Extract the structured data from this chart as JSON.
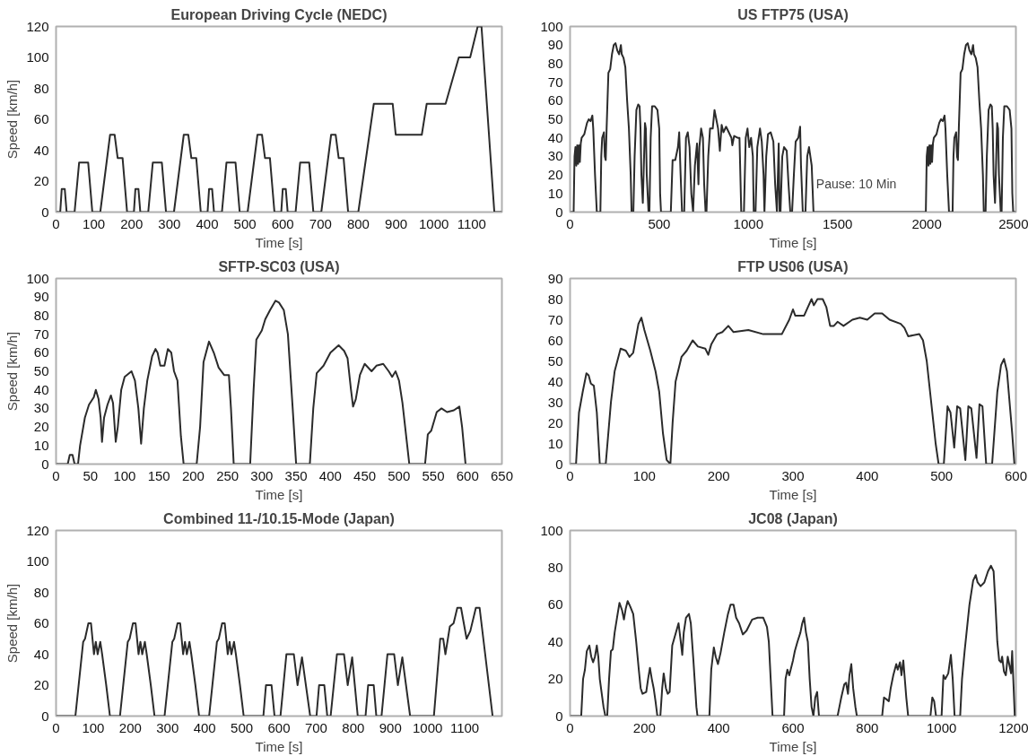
{
  "chart_data": [
    {
      "type": "line",
      "title": "European Driving Cycle (NEDC)",
      "xlabel": "Time [s]",
      "ylabel": "Speed [km/h]",
      "xlim": [
        0,
        1180
      ],
      "ylim": [
        0,
        120
      ],
      "xticks": [
        0,
        100,
        200,
        300,
        400,
        500,
        600,
        700,
        800,
        900,
        1000,
        1100
      ],
      "yticks": [
        0,
        20,
        40,
        60,
        80,
        100,
        120
      ],
      "grid": false,
      "series": [
        {
          "color": "#2b2b2b",
          "x": [
            0,
            11,
            15,
            23,
            28,
            49,
            61,
            85,
            96,
            117,
            143,
            155,
            163,
            176,
            188,
            206,
            210,
            218,
            223,
            244,
            256,
            280,
            291,
            312,
            338,
            350,
            358,
            371,
            383,
            401,
            405,
            413,
            418,
            439,
            451,
            475,
            486,
            507,
            533,
            545,
            553,
            566,
            578,
            596,
            600,
            608,
            613,
            634,
            646,
            670,
            681,
            702,
            728,
            740,
            748,
            761,
            773,
            800,
            841,
            891,
            899,
            968,
            981,
            1031,
            1066,
            1096,
            1116,
            1126,
            1160,
            1180
          ],
          "values": [
            0,
            0,
            15,
            15,
            0,
            0,
            32,
            32,
            0,
            0,
            50,
            50,
            35,
            35,
            0,
            0,
            15,
            15,
            0,
            0,
            32,
            32,
            0,
            0,
            50,
            50,
            35,
            35,
            0,
            0,
            15,
            15,
            0,
            0,
            32,
            32,
            0,
            0,
            50,
            50,
            35,
            35,
            0,
            0,
            15,
            15,
            0,
            0,
            32,
            32,
            0,
            0,
            50,
            50,
            35,
            35,
            0,
            0,
            70,
            70,
            50,
            50,
            70,
            70,
            100,
            100,
            120,
            120,
            0,
            0
          ]
        }
      ]
    },
    {
      "type": "line",
      "title": "US FTP75 (USA)",
      "xlabel": "Time [s]",
      "xlim": [
        0,
        2500
      ],
      "ylim": [
        0,
        100
      ],
      "xticks": [
        0,
        500,
        1000,
        1500,
        2000,
        2500
      ],
      "yticks": [
        0,
        10,
        20,
        30,
        40,
        50,
        60,
        70,
        80,
        90,
        100
      ],
      "grid": false,
      "annotations": [
        {
          "text": "Pause: 10 Min",
          "x": 1380,
          "y": 15
        }
      ],
      "series": [
        {
          "color": "#2b2b2b",
          "x": [
            0,
            20,
            25,
            30,
            35,
            40,
            45,
            50,
            55,
            60,
            65,
            80,
            95,
            105,
            115,
            125,
            130,
            140,
            150,
            170,
            175,
            180,
            190,
            195,
            200,
            205,
            215,
            225,
            235,
            245,
            255,
            265,
            275,
            285,
            290,
            300,
            310,
            320,
            330,
            340,
            345,
            355,
            362,
            372,
            382,
            390,
            395,
            400,
            408,
            415,
            420,
            425,
            430,
            440,
            445,
            452,
            460,
            475,
            490,
            500,
            505,
            510,
            565,
            575,
            590,
            605,
            612,
            620,
            628,
            640,
            650,
            660,
            670,
            680,
            690,
            700,
            712,
            720,
            725,
            735,
            745,
            752,
            760,
            765,
            775,
            785,
            800,
            810,
            820,
            830,
            840,
            850,
            860,
            875,
            890,
            905,
            910,
            920,
            940,
            950,
            960,
            975,
            985,
            995,
            1005,
            1015,
            1025,
            1030,
            1040,
            1050,
            1065,
            1075,
            1085,
            1090,
            1100,
            1110,
            1125,
            1140,
            1150,
            1160,
            1170,
            1175,
            1180,
            1190,
            1200,
            1215,
            1225,
            1235,
            1245,
            1255,
            1265,
            1280,
            1290,
            1295,
            1305,
            1320,
            1330,
            1340,
            1355,
            1365,
            1975,
            1995,
            2000,
            2005,
            2010,
            2015,
            2020,
            2025,
            2030,
            2035,
            2040,
            2055,
            2070,
            2080,
            2090,
            2100,
            2105,
            2115,
            2125,
            2145,
            2150,
            2155,
            2165,
            2170,
            2175,
            2180,
            2190,
            2200,
            2210,
            2220,
            2230,
            2240,
            2250,
            2260,
            2265,
            2275,
            2285,
            2295,
            2305,
            2315,
            2320,
            2330,
            2337,
            2347,
            2357,
            2365,
            2370,
            2375,
            2383,
            2390,
            2395,
            2400,
            2405,
            2415,
            2420,
            2427,
            2435,
            2450,
            2465,
            2475,
            2480,
            2485,
            2500
          ],
          "values": [
            0,
            0,
            30,
            35,
            25,
            36,
            26,
            36,
            27,
            37,
            40,
            42,
            48,
            50,
            49,
            52,
            45,
            20,
            0,
            0,
            30,
            40,
            43,
            30,
            28,
            45,
            75,
            77,
            85,
            90,
            91,
            87,
            85,
            90,
            85,
            83,
            78,
            60,
            45,
            20,
            0,
            0,
            30,
            55,
            58,
            57,
            45,
            20,
            5,
            30,
            48,
            45,
            20,
            0,
            0,
            40,
            57,
            57,
            55,
            45,
            10,
            0,
            0,
            28,
            28,
            35,
            43,
            20,
            0,
            0,
            40,
            43,
            35,
            10,
            0,
            25,
            37,
            15,
            35,
            45,
            40,
            15,
            0,
            0,
            30,
            45,
            45,
            55,
            50,
            45,
            33,
            47,
            43,
            46,
            43,
            40,
            36,
            41,
            40,
            40,
            0,
            0,
            40,
            45,
            35,
            40,
            30,
            0,
            0,
            35,
            45,
            38,
            20,
            0,
            30,
            42,
            43,
            38,
            15,
            0,
            37,
            0,
            0,
            30,
            35,
            33,
            15,
            0,
            0,
            20,
            38,
            40,
            46,
            25,
            0,
            0,
            30,
            35,
            25,
            0,
            0,
            0,
            30,
            35,
            25,
            36,
            26,
            36,
            27,
            37,
            40,
            42,
            48,
            50,
            49,
            52,
            45,
            20,
            0,
            0,
            30,
            40,
            43,
            30,
            28,
            45,
            75,
            77,
            85,
            90,
            91,
            87,
            85,
            90,
            85,
            83,
            78,
            60,
            45,
            20,
            0,
            0,
            30,
            55,
            58,
            57,
            45,
            20,
            5,
            30,
            48,
            45,
            20,
            0,
            0,
            40,
            57,
            57,
            55,
            45,
            10,
            0,
            0
          ]
        }
      ]
    },
    {
      "type": "line",
      "title": "SFTP-SC03 (USA)",
      "xlabel": "Time [s]",
      "ylabel": "Speed [km/h]",
      "xlim": [
        0,
        650
      ],
      "ylim": [
        0,
        100
      ],
      "xticks": [
        0,
        50,
        100,
        150,
        200,
        250,
        300,
        350,
        400,
        450,
        500,
        550,
        600,
        650
      ],
      "yticks": [
        0,
        10,
        20,
        30,
        40,
        50,
        60,
        70,
        80,
        90,
        100
      ],
      "grid": false,
      "series": [
        {
          "color": "#2b2b2b",
          "x": [
            0,
            17,
            20,
            24,
            27,
            32,
            35,
            42,
            48,
            55,
            58,
            62,
            65,
            67,
            70,
            75,
            80,
            83,
            87,
            90,
            95,
            100,
            110,
            115,
            120,
            124,
            128,
            133,
            140,
            145,
            148,
            152,
            158,
            163,
            168,
            172,
            177,
            182,
            186,
            205,
            210,
            215,
            223,
            230,
            237,
            245,
            252,
            255,
            259,
            283,
            288,
            292,
            300,
            305,
            312,
            320,
            325,
            332,
            338,
            345,
            350,
            370,
            375,
            380,
            390,
            400,
            412,
            420,
            425,
            430,
            433,
            437,
            443,
            450,
            460,
            467,
            477,
            485,
            490,
            495,
            500,
            505,
            512,
            515,
            538,
            542,
            547,
            555,
            562,
            570,
            580,
            588,
            592,
            597
          ],
          "values": [
            0,
            0,
            5,
            5,
            0,
            0,
            10,
            25,
            32,
            36,
            40,
            35,
            25,
            12,
            25,
            32,
            37,
            33,
            12,
            20,
            40,
            47,
            50,
            45,
            30,
            11,
            30,
            45,
            58,
            62,
            60,
            53,
            53,
            62,
            60,
            50,
            45,
            15,
            0,
            0,
            20,
            55,
            66,
            60,
            52,
            48,
            48,
            30,
            0,
            0,
            40,
            67,
            72,
            78,
            83,
            88,
            87,
            83,
            70,
            30,
            0,
            0,
            30,
            49,
            53,
            60,
            64,
            61,
            57,
            40,
            31,
            35,
            48,
            54,
            50,
            53,
            54,
            50,
            47,
            50,
            45,
            33,
            10,
            0,
            0,
            16,
            18,
            28,
            30,
            28,
            29,
            31,
            20,
            0
          ]
        }
      ]
    },
    {
      "type": "line",
      "title": "FTP US06 (USA)",
      "xlabel": "Time [s]",
      "xlim": [
        0,
        600
      ],
      "ylim": [
        0,
        90
      ],
      "xticks": [
        0,
        100,
        200,
        300,
        400,
        500,
        600
      ],
      "yticks": [
        0,
        10,
        20,
        30,
        40,
        50,
        60,
        70,
        80,
        90
      ],
      "grid": false,
      "series": [
        {
          "color": "#2b2b2b",
          "x": [
            0,
            8,
            12,
            17,
            22,
            25,
            28,
            32,
            36,
            40,
            48,
            55,
            60,
            68,
            75,
            80,
            85,
            92,
            96,
            100,
            108,
            115,
            120,
            125,
            130,
            135,
            138,
            142,
            150,
            157,
            165,
            172,
            182,
            186,
            190,
            198,
            205,
            213,
            220,
            240,
            260,
            285,
            295,
            300,
            303,
            315,
            320,
            325,
            328,
            333,
            340,
            345,
            350,
            355,
            360,
            368,
            380,
            390,
            400,
            410,
            420,
            430,
            445,
            450,
            455,
            470,
            475,
            480,
            486,
            492,
            496,
            503,
            508,
            512,
            517,
            521,
            525,
            532,
            536,
            540,
            547,
            551,
            555,
            560,
            568,
            575,
            580,
            584,
            588,
            595,
            598
          ],
          "values": [
            0,
            0,
            25,
            35,
            44,
            43,
            39,
            38,
            25,
            0,
            0,
            30,
            45,
            56,
            55,
            52,
            54,
            68,
            71,
            65,
            55,
            45,
            35,
            15,
            2,
            0,
            20,
            40,
            52,
            55,
            60,
            57,
            56,
            53,
            58,
            63,
            64,
            67,
            64,
            65,
            63,
            63,
            70,
            75,
            72,
            72,
            76,
            80,
            77,
            80,
            80,
            76,
            67,
            67,
            69,
            67,
            70,
            71,
            70,
            73,
            73,
            70,
            68,
            66,
            62,
            63,
            60,
            50,
            30,
            10,
            0,
            0,
            28,
            25,
            8,
            28,
            27,
            2,
            28,
            27,
            3,
            29,
            28,
            0,
            0,
            35,
            48,
            51,
            45,
            15,
            0
          ]
        }
      ]
    },
    {
      "type": "line",
      "title": "Combined 11-/10.15-Mode (Japan)",
      "xlabel": "Time [s]",
      "ylabel": "Speed [km/h]",
      "xlim": [
        0,
        1200
      ],
      "ylim": [
        0,
        120
      ],
      "xticks": [
        0,
        100,
        200,
        300,
        400,
        500,
        600,
        700,
        800,
        900,
        1000,
        1100
      ],
      "yticks": [
        0,
        20,
        40,
        60,
        80,
        100,
        120
      ],
      "grid": false,
      "series": [
        {
          "color": "#2b2b2b",
          "x": [
            0,
            52,
            73,
            78,
            87,
            94,
            102,
            107,
            112,
            119,
            124,
            135,
            145,
            172,
            193,
            198,
            207,
            214,
            222,
            227,
            232,
            239,
            244,
            255,
            265,
            292,
            313,
            318,
            327,
            334,
            342,
            347,
            352,
            359,
            364,
            375,
            385,
            412,
            433,
            438,
            447,
            454,
            462,
            467,
            472,
            479,
            484,
            495,
            505,
            558,
            565,
            580,
            588,
            604,
            620,
            640,
            650,
            662,
            684,
            701,
            708,
            722,
            730,
            739,
            756,
            775,
            785,
            797,
            812,
            833,
            840,
            855,
            862,
            876,
            892,
            910,
            920,
            932,
            953,
            1017,
            1034,
            1042,
            1048,
            1060,
            1070,
            1080,
            1090,
            1105,
            1115,
            1130,
            1140,
            1160,
            1175
          ],
          "values": [
            0,
            0,
            48,
            50,
            60,
            60,
            40,
            48,
            40,
            48,
            40,
            20,
            0,
            0,
            48,
            50,
            60,
            60,
            40,
            48,
            40,
            48,
            40,
            20,
            0,
            0,
            48,
            50,
            60,
            60,
            40,
            48,
            40,
            48,
            40,
            20,
            0,
            0,
            48,
            50,
            60,
            60,
            40,
            48,
            40,
            48,
            40,
            20,
            0,
            0,
            20,
            20,
            0,
            0,
            40,
            40,
            20,
            38,
            0,
            0,
            20,
            20,
            0,
            0,
            40,
            40,
            20,
            38,
            0,
            0,
            20,
            20,
            0,
            0,
            40,
            40,
            20,
            38,
            0,
            0,
            50,
            50,
            40,
            58,
            60,
            70,
            70,
            50,
            55,
            70,
            70,
            30,
            0
          ]
        }
      ]
    },
    {
      "type": "line",
      "title": "JC08 (Japan)",
      "xlabel": "Time [s]",
      "xlim": [
        0,
        1200
      ],
      "ylim": [
        0,
        100
      ],
      "xticks": [
        0,
        200,
        400,
        600,
        800,
        1000,
        1200
      ],
      "yticks": [
        0,
        20,
        40,
        60,
        80,
        100
      ],
      "grid": false,
      "series": [
        {
          "color": "#2b2b2b",
          "x": [
            0,
            30,
            35,
            40,
            45,
            52,
            57,
            62,
            67,
            72,
            76,
            80,
            90,
            95,
            100,
            105,
            110,
            115,
            120,
            128,
            133,
            140,
            145,
            150,
            155,
            162,
            170,
            178,
            185,
            190,
            195,
            205,
            210,
            215,
            220,
            225,
            230,
            235,
            243,
            248,
            252,
            258,
            263,
            268,
            275,
            285,
            292,
            298,
            302,
            306,
            312,
            320,
            325,
            332,
            340,
            343,
            375,
            380,
            387,
            392,
            398,
            405,
            415,
            425,
            432,
            440,
            447,
            455,
            465,
            475,
            490,
            505,
            520,
            530,
            535,
            540,
            545,
            576,
            580,
            585,
            590,
            600,
            605,
            612,
            620,
            625,
            630,
            635,
            640,
            645,
            650,
            655,
            660,
            665,
            670,
            720,
            725,
            730,
            738,
            743,
            748,
            752,
            757,
            762,
            768,
            772,
            840,
            845,
            852,
            858,
            863,
            870,
            878,
            882,
            888,
            892,
            897,
            905,
            910,
            970,
            975,
            980,
            985,
            1000,
            1005,
            1010,
            1018,
            1025,
            1030,
            1035,
            1050,
            1055,
            1062,
            1075,
            1085,
            1092,
            1097,
            1105,
            1115,
            1125,
            1133,
            1140,
            1145,
            1150,
            1155,
            1160,
            1163,
            1168,
            1173,
            1178,
            1182,
            1187,
            1190,
            1193,
            1197
          ],
          "values": [
            0,
            0,
            20,
            25,
            35,
            38,
            32,
            29,
            32,
            38,
            32,
            20,
            5,
            0,
            0,
            20,
            35,
            36,
            45,
            55,
            61,
            57,
            52,
            58,
            62,
            59,
            55,
            40,
            25,
            15,
            12,
            13,
            20,
            26,
            20,
            15,
            8,
            0,
            0,
            15,
            23,
            15,
            12,
            13,
            38,
            45,
            50,
            40,
            33,
            45,
            53,
            55,
            50,
            30,
            5,
            0,
            0,
            25,
            37,
            32,
            28,
            34,
            45,
            55,
            60,
            60,
            53,
            50,
            44,
            46,
            52,
            53,
            53,
            48,
            40,
            20,
            0,
            0,
            20,
            25,
            22,
            30,
            35,
            40,
            45,
            50,
            53,
            45,
            40,
            20,
            5,
            0,
            10,
            13,
            0,
            0,
            5,
            10,
            17,
            18,
            12,
            22,
            28,
            15,
            5,
            0,
            0,
            10,
            9,
            8,
            15,
            22,
            28,
            25,
            29,
            22,
            30,
            10,
            0,
            0,
            10,
            8,
            0,
            0,
            22,
            20,
            23,
            33,
            20,
            0,
            0,
            20,
            35,
            60,
            73,
            76,
            72,
            70,
            72,
            78,
            81,
            78,
            60,
            40,
            30,
            29,
            32,
            24,
            22,
            32,
            28,
            23,
            35,
            20,
            0
          ]
        }
      ]
    }
  ]
}
